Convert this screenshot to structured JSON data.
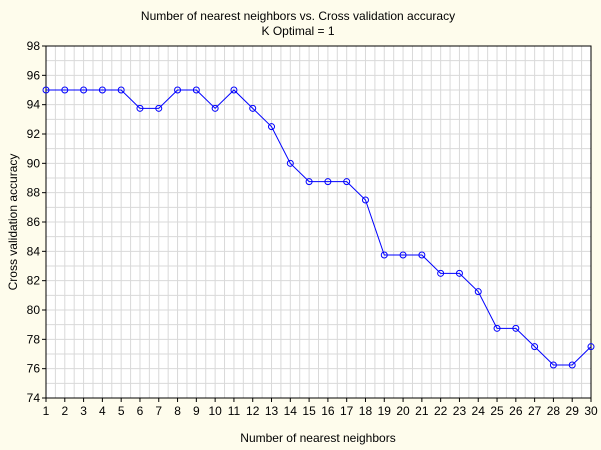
{
  "chart_data": {
    "type": "line",
    "title": "Number of nearest neighbors vs. Cross validation accuracy",
    "subtitle": "K Optimal = 1",
    "xlabel": "Number of nearest neighbors",
    "ylabel": "Cross validation accuracy",
    "xlim": [
      1,
      30
    ],
    "ylim": [
      74,
      98
    ],
    "x_ticks": [
      1,
      2,
      3,
      4,
      5,
      6,
      7,
      8,
      9,
      10,
      11,
      12,
      13,
      14,
      15,
      16,
      17,
      18,
      19,
      20,
      21,
      22,
      23,
      24,
      25,
      26,
      27,
      28,
      29,
      30
    ],
    "y_ticks": [
      74,
      76,
      78,
      80,
      82,
      84,
      86,
      88,
      90,
      92,
      94,
      96,
      98
    ],
    "grid": true,
    "series": [
      {
        "color": "#0000ff",
        "x": [
          1,
          2,
          3,
          4,
          5,
          6,
          7,
          8,
          9,
          10,
          11,
          12,
          13,
          14,
          15,
          16,
          17,
          18,
          19,
          20,
          21,
          22,
          23,
          24,
          25,
          26,
          27,
          28,
          29,
          30
        ],
        "y": [
          95,
          95,
          95,
          95,
          95,
          93.75,
          93.75,
          95,
          95,
          93.75,
          95,
          93.75,
          92.5,
          90,
          88.75,
          88.75,
          88.75,
          87.5,
          83.75,
          83.75,
          83.75,
          82.5,
          82.5,
          81.25,
          78.75,
          78.75,
          77.5,
          76.25,
          76.25,
          77.5
        ]
      }
    ]
  }
}
